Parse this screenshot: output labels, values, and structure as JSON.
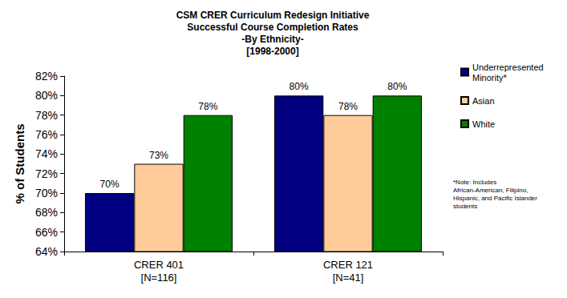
{
  "chart_data": {
    "type": "bar",
    "title": "CSM CRER Curriculum Redesign Initiative\nSuccessful Course Completion Rates\n-By Ethnicity-\n[1998-2000]",
    "y_label": "% of Students",
    "categories": [
      "CRER 401\n[N=116]",
      "CRER 121\n[N=41]"
    ],
    "series": [
      {
        "name": "Underrepresented Minority*",
        "color": "#000080",
        "values": [
          70,
          80
        ],
        "value_labels": [
          "70%",
          "80%"
        ]
      },
      {
        "name": "Asian",
        "color": "#FFCC99",
        "values": [
          73,
          78
        ],
        "value_labels": [
          "73%",
          "78%"
        ]
      },
      {
        "name": "White",
        "color": "#008000",
        "values": [
          78,
          80
        ],
        "value_labels": [
          "78%",
          "80%"
        ]
      }
    ],
    "ylim": [
      64,
      82
    ],
    "yticks": [
      {
        "value": 64,
        "label": "64%"
      },
      {
        "value": 66,
        "label": "66%"
      },
      {
        "value": 68,
        "label": "68%"
      },
      {
        "value": 70,
        "label": "70%"
      },
      {
        "value": 72,
        "label": "72%"
      },
      {
        "value": 74,
        "label": "74%"
      },
      {
        "value": 76,
        "label": "76%"
      },
      {
        "value": 78,
        "label": "78%"
      },
      {
        "value": 80,
        "label": "80%"
      },
      {
        "value": 82,
        "label": "82%"
      }
    ],
    "note": "*Note: Includes African-American, Filipino, Hispanic, and Pacific Islander students",
    "grid": false,
    "legend": "right",
    "data_labels": true
  }
}
